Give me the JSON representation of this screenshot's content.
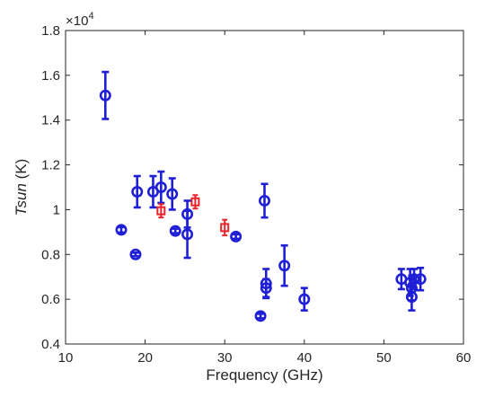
{
  "chart_data": {
    "type": "scatter",
    "xlabel": "Frequency (GHz)",
    "ylabel_italic": "Tsun",
    "ylabel_unit": " (K)",
    "xlim": [
      10,
      60
    ],
    "ylim": [
      4000,
      18000
    ],
    "x_ticks": [
      10,
      20,
      30,
      40,
      50,
      60
    ],
    "y_ticks": [
      4000,
      6000,
      8000,
      10000,
      12000,
      14000,
      16000,
      18000
    ],
    "y_tick_labels": [
      "0.4",
      "0.6",
      "0.8",
      "1",
      "1.2",
      "1.4",
      "1.6",
      "1.8"
    ],
    "multiplier_base": "×10",
    "multiplier_exp": "4",
    "grid": false,
    "series": [
      {
        "marker": "circle",
        "color": "#1f1fd6",
        "points": [
          {
            "x": 15.0,
            "y": 15100,
            "err": 1050
          },
          {
            "x": 17.0,
            "y": 9100,
            "err": 120
          },
          {
            "x": 18.8,
            "y": 8000,
            "err": 80
          },
          {
            "x": 19.0,
            "y": 10800,
            "err": 700
          },
          {
            "x": 21.0,
            "y": 10800,
            "err": 700
          },
          {
            "x": 22.0,
            "y": 11000,
            "err": 700
          },
          {
            "x": 23.4,
            "y": 10700,
            "err": 700
          },
          {
            "x": 23.8,
            "y": 9050,
            "err": 100
          },
          {
            "x": 25.3,
            "y": 9800,
            "err": 600
          },
          {
            "x": 25.3,
            "y": 8900,
            "err": 1050
          },
          {
            "x": 31.4,
            "y": 8800,
            "err": 100
          },
          {
            "x": 34.5,
            "y": 5250,
            "err": 100
          },
          {
            "x": 35.0,
            "y": 10400,
            "err": 750
          },
          {
            "x": 35.2,
            "y": 6700,
            "err": 650
          },
          {
            "x": 35.2,
            "y": 6500,
            "err": 400
          },
          {
            "x": 37.5,
            "y": 7500,
            "err": 900
          },
          {
            "x": 40.0,
            "y": 6000,
            "err": 500
          },
          {
            "x": 52.2,
            "y": 6900,
            "err": 450
          },
          {
            "x": 53.3,
            "y": 6750,
            "err": 600
          },
          {
            "x": 53.5,
            "y": 6500,
            "err": 550
          },
          {
            "x": 53.5,
            "y": 6100,
            "err": 600
          },
          {
            "x": 53.8,
            "y": 6900,
            "err": 450
          },
          {
            "x": 54.6,
            "y": 6900,
            "err": 500
          }
        ]
      },
      {
        "marker": "square",
        "color": "#e8232b",
        "points": [
          {
            "x": 22.0,
            "y": 9950,
            "err": 300
          },
          {
            "x": 26.3,
            "y": 10350,
            "err": 300
          },
          {
            "x": 30.0,
            "y": 9200,
            "err": 350
          }
        ]
      }
    ]
  }
}
